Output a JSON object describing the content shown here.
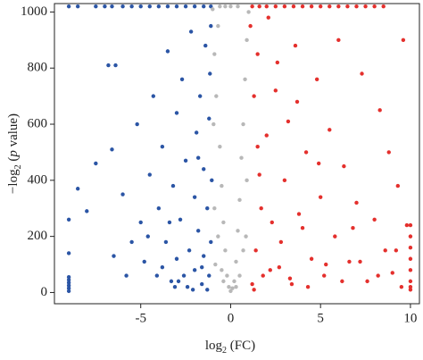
{
  "chart_data": {
    "type": "scatter",
    "xlabel": [
      "log",
      "2",
      " (FC)"
    ],
    "ylabel": [
      "−log",
      "2",
      " (",
      "p",
      " value)"
    ],
    "xlim": [
      -9.8,
      10.5
    ],
    "ylim": [
      -40,
      1030
    ],
    "xticks": [
      -5,
      0,
      5,
      10
    ],
    "yticks": [
      0,
      200,
      400,
      600,
      800,
      1000
    ],
    "series": [
      {
        "color": "#2b55a5",
        "x": [
          -9,
          -8.5,
          -7.5,
          -7,
          -6.6,
          -6,
          -5.5,
          -5,
          -4.5,
          -4,
          -3.5,
          -3,
          -2.5,
          -2,
          -1.5,
          -1.1,
          -9,
          -9,
          -9,
          -9,
          -9,
          -9,
          -9,
          -9,
          -8.5,
          -8,
          -7.5,
          -6.8,
          -6.4,
          -6.6,
          -6,
          -5.5,
          -5.2,
          -5,
          -4.8,
          -4.5,
          -4.3,
          -4.1,
          -4,
          -3.8,
          -3.6,
          -3.5,
          -3.3,
          -3.2,
          -3,
          -3,
          -2.8,
          -2.7,
          -2.5,
          -2.4,
          -2.3,
          -2.2,
          -2,
          -2,
          -1.9,
          -1.8,
          -1.7,
          -1.6,
          -1.5,
          -1.5,
          -1.4,
          -1.3,
          -1.2,
          -1.2,
          -1.1,
          -1.1,
          -1.05,
          -3.8,
          -3.1,
          -2.6,
          -4.6,
          -5.8,
          -6.5,
          -2.1,
          -1.3,
          -1.6,
          -2.9,
          -3.4,
          -1.15,
          -1.8
        ],
        "values": [
          1020,
          1020,
          1020,
          1020,
          1020,
          1020,
          1020,
          1020,
          1020,
          1020,
          1020,
          1020,
          1020,
          1020,
          1020,
          1020,
          5,
          15,
          25,
          35,
          45,
          55,
          260,
          140,
          370,
          290,
          460,
          810,
          810,
          510,
          350,
          180,
          600,
          250,
          110,
          420,
          700,
          60,
          300,
          520,
          180,
          860,
          40,
          380,
          640,
          120,
          260,
          760,
          470,
          20,
          150,
          930,
          340,
          80,
          570,
          220,
          700,
          30,
          440,
          130,
          880,
          300,
          60,
          620,
          180,
          950,
          400,
          90,
          20,
          60,
          200,
          60,
          130,
          10,
          10,
          90,
          40,
          250,
          780,
          480
        ]
      },
      {
        "color": "#b8b8b8",
        "x": [
          -1,
          -0.9,
          -0.8,
          -0.7,
          -0.6,
          -0.5,
          -0.4,
          -0.3,
          -0.2,
          -0.1,
          0,
          0.1,
          0.2,
          0.3,
          0.4,
          0.5,
          0.6,
          0.7,
          0.8,
          0.9,
          1,
          -0.9,
          -0.7,
          -0.5,
          0.5,
          0.7,
          0.9,
          -0.95,
          -0.3,
          0,
          -0.6,
          0.4,
          -0.85,
          0.85,
          -0.4,
          0.3
        ],
        "values": [
          1010,
          850,
          700,
          950,
          520,
          380,
          250,
          150,
          60,
          20,
          5,
          15,
          40,
          110,
          220,
          330,
          480,
          600,
          760,
          900,
          1000,
          300,
          200,
          80,
          60,
          150,
          400,
          600,
          1020,
          1020,
          1020,
          1020,
          100,
          200,
          40,
          20
        ]
      },
      {
        "color": "#e4302d",
        "x": [
          1.2,
          1.6,
          2,
          2.5,
          3,
          3.5,
          4,
          4.5,
          5,
          5.5,
          6,
          6.5,
          7,
          7.5,
          8,
          8.5,
          10,
          10,
          10,
          10,
          10,
          10,
          10,
          10,
          1.1,
          1.2,
          1.3,
          1.4,
          1.5,
          1.6,
          1.8,
          2,
          2.1,
          2.3,
          2.5,
          2.7,
          3,
          3.2,
          3.4,
          3.6,
          4,
          4.2,
          4.5,
          4.8,
          5,
          5.2,
          5.5,
          5.8,
          6,
          6.3,
          6.6,
          7,
          7.3,
          7.6,
          8,
          8.3,
          8.6,
          9,
          9.3,
          9.6,
          1.3,
          1.7,
          2.2,
          2.8,
          3.3,
          3.8,
          4.3,
          5.3,
          6.2,
          7.2,
          8.2,
          9.2,
          9.8,
          1.5,
          2.6,
          3.7,
          4.9,
          6.8,
          8.8,
          9.5
        ],
        "values": [
          1020,
          1020,
          1020,
          1020,
          1020,
          1020,
          1020,
          1020,
          1020,
          1020,
          1020,
          1020,
          1020,
          1020,
          1020,
          1020,
          10,
          40,
          80,
          120,
          160,
          200,
          240,
          20,
          950,
          30,
          700,
          150,
          850,
          420,
          60,
          560,
          980,
          250,
          720,
          90,
          400,
          610,
          30,
          880,
          230,
          500,
          120,
          760,
          340,
          60,
          580,
          200,
          900,
          450,
          110,
          320,
          780,
          40,
          260,
          650,
          150,
          70,
          380,
          900,
          10,
          300,
          80,
          180,
          50,
          280,
          20,
          100,
          40,
          110,
          60,
          150,
          240,
          520,
          820,
          680,
          460,
          230,
          500,
          20
        ]
      }
    ]
  }
}
